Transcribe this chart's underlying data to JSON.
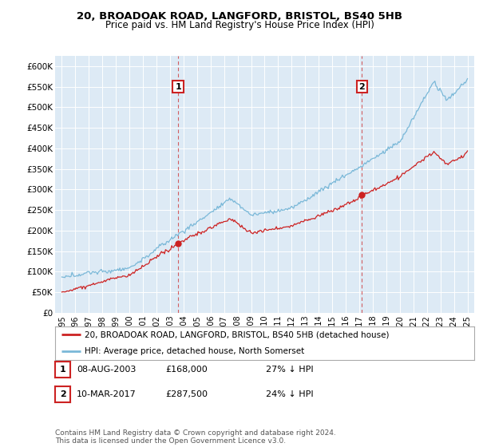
{
  "title1": "20, BROADOAK ROAD, LANGFORD, BRISTOL, BS40 5HB",
  "title2": "Price paid vs. HM Land Registry's House Price Index (HPI)",
  "ylabel_ticks": [
    "£0",
    "£50K",
    "£100K",
    "£150K",
    "£200K",
    "£250K",
    "£300K",
    "£350K",
    "£400K",
    "£450K",
    "£500K",
    "£550K",
    "£600K"
  ],
  "ytick_vals": [
    0,
    50000,
    100000,
    150000,
    200000,
    250000,
    300000,
    350000,
    400000,
    450000,
    500000,
    550000,
    600000
  ],
  "ylim": [
    0,
    625000
  ],
  "xlim_start": 1994.5,
  "xlim_end": 2025.5,
  "hpi_color": "#7ab8d8",
  "price_color": "#cc2222",
  "vline_color": "#cc2222",
  "ann1_x": 2003.6,
  "ann1_y": 168000,
  "ann2_x": 2017.2,
  "ann2_y": 287500,
  "legend_line1": "20, BROADOAK ROAD, LANGFORD, BRISTOL, BS40 5HB (detached house)",
  "legend_line2": "HPI: Average price, detached house, North Somerset",
  "table_rows": [
    {
      "num": "1",
      "date": "08-AUG-2003",
      "price": "£168,000",
      "pct": "27% ↓ HPI"
    },
    {
      "num": "2",
      "date": "10-MAR-2017",
      "price": "£287,500",
      "pct": "24% ↓ HPI"
    }
  ],
  "footer": "Contains HM Land Registry data © Crown copyright and database right 2024.\nThis data is licensed under the Open Government Licence v3.0.",
  "plot_bg_color": "#ddeaf5",
  "grid_color": "#ffffff",
  "xticks": [
    1995,
    1996,
    1997,
    1998,
    1999,
    2000,
    2001,
    2002,
    2003,
    2004,
    2005,
    2006,
    2007,
    2008,
    2009,
    2010,
    2011,
    2012,
    2013,
    2014,
    2015,
    2016,
    2017,
    2018,
    2019,
    2020,
    2021,
    2022,
    2023,
    2024,
    2025
  ]
}
